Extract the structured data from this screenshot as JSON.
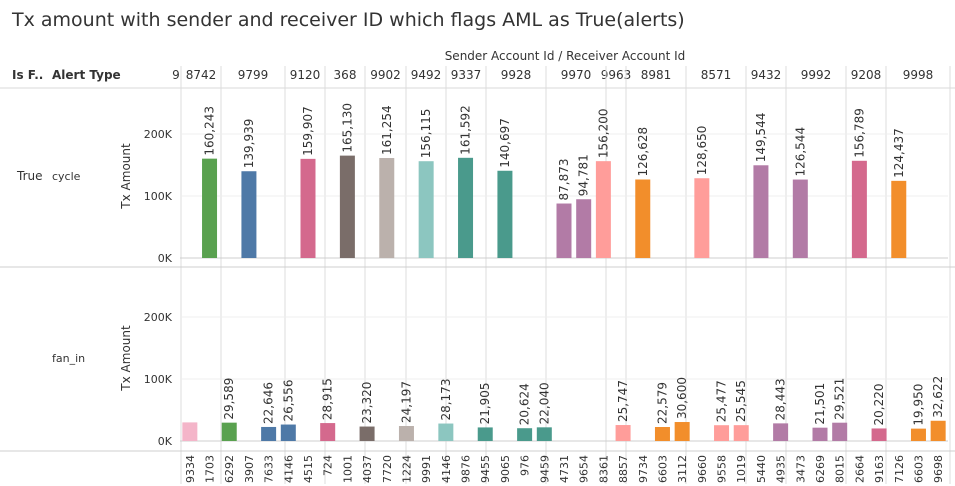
{
  "title": "Tx amount with sender and receiver ID which flags AML as True(alerts)",
  "chart_data": {
    "type": "bar",
    "title": "Tx amount with sender and receiver ID which flags AML as True(alerts)",
    "column_header": "Sender Account Id  /  Receiver Account Id",
    "row_headers": [
      "Is F..",
      "Alert Type"
    ],
    "is_flagged": "True",
    "ylabel": "Tx Amount",
    "y_ticks": [
      "0K",
      "100K",
      "200K"
    ],
    "ylim": [
      0,
      240000
    ],
    "senders": [
      "9",
      "8742",
      "9799",
      "9120",
      "368",
      "9902",
      "9492",
      "9337",
      "9928",
      "9970",
      "9963",
      "8981",
      "8571",
      "9432",
      "9992",
      "9208",
      "9998"
    ],
    "receivers": [
      "9334",
      "1703",
      "6292",
      "3907",
      "7633",
      "4146",
      "4515",
      "724",
      "1001",
      "4037",
      "7720",
      "1224",
      "9991",
      "4146",
      "9876",
      "9455",
      "9065",
      "976",
      "9459",
      "4731",
      "9654",
      "8361",
      "8857",
      "9734",
      "6603",
      "3112",
      "9660",
      "9558",
      "1019",
      "5440",
      "4935",
      "3473",
      "6269",
      "8015",
      "2664",
      "9163",
      "7126",
      "6603",
      "9698"
    ],
    "series": [
      {
        "name": "cycle",
        "values": [
          null,
          160243,
          null,
          139939,
          null,
          null,
          159907,
          null,
          165130,
          null,
          161254,
          null,
          156115,
          null,
          161592,
          null,
          140697,
          null,
          null,
          87873,
          94781,
          156200,
          null,
          126628,
          null,
          null,
          128650,
          null,
          null,
          149544,
          null,
          126544,
          null,
          null,
          156789,
          null,
          124437,
          null,
          null
        ],
        "labels": [
          null,
          "160,243",
          null,
          "139,939",
          null,
          null,
          "159,907",
          null,
          "165,130",
          null,
          "161,254",
          null,
          "156,115",
          null,
          "161,592",
          null,
          "140,697",
          null,
          null,
          "87,873",
          "94,781",
          "156,200",
          null,
          "126,628",
          null,
          null,
          "128,650",
          null,
          null,
          "149,544",
          null,
          "126,544",
          null,
          null,
          "156,789",
          null,
          "124,437",
          null,
          null
        ]
      },
      {
        "name": "fan_in",
        "values": [
          30000,
          null,
          29589,
          null,
          22646,
          26556,
          null,
          28915,
          null,
          23320,
          null,
          24197,
          null,
          28173,
          null,
          21905,
          null,
          20624,
          22040,
          null,
          null,
          null,
          25747,
          null,
          22579,
          30600,
          null,
          25477,
          25545,
          null,
          28443,
          null,
          21501,
          29521,
          null,
          20220,
          null,
          19950,
          32622
        ],
        "labels": [
          null,
          null,
          "29,589",
          null,
          "22,646",
          "26,556",
          null,
          "28,915",
          null,
          "23,320",
          null,
          "24,197",
          null,
          "28,173",
          null,
          "21,905",
          null,
          "20,624",
          "22,040",
          null,
          null,
          null,
          "25,747",
          null,
          "22,579",
          "30,600",
          null,
          "25,477",
          "25,545",
          null,
          "28,443",
          null,
          "21,501",
          "29,521",
          null,
          "20,220",
          null,
          "19,950",
          "32,622"
        ]
      }
    ],
    "grid": true,
    "legend": "none"
  }
}
